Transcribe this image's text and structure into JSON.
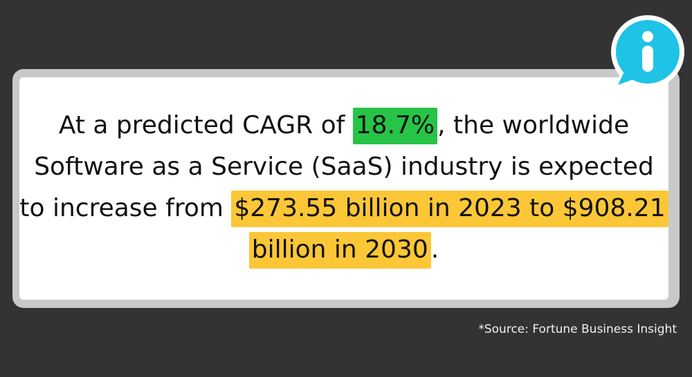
{
  "statement": {
    "part1": "At a predicted CAGR of ",
    "highlight_green": "18.7%",
    "part2": ", the worldwide Software as a Service (SaaS) industry is expected to increase from ",
    "highlight_yellow": "$273.55 billion in 2023 to $908.21 billion in 2030",
    "part3": "."
  },
  "source": "*Source: Fortune Business Insight",
  "colors": {
    "background": "#333333",
    "card": "#ffffff",
    "card_border": "#c9c9c9",
    "highlight_green": "#27c447",
    "highlight_yellow": "#fbc737",
    "info_badge": "#1fc3e6"
  },
  "icons": {
    "badge": "info-icon"
  }
}
